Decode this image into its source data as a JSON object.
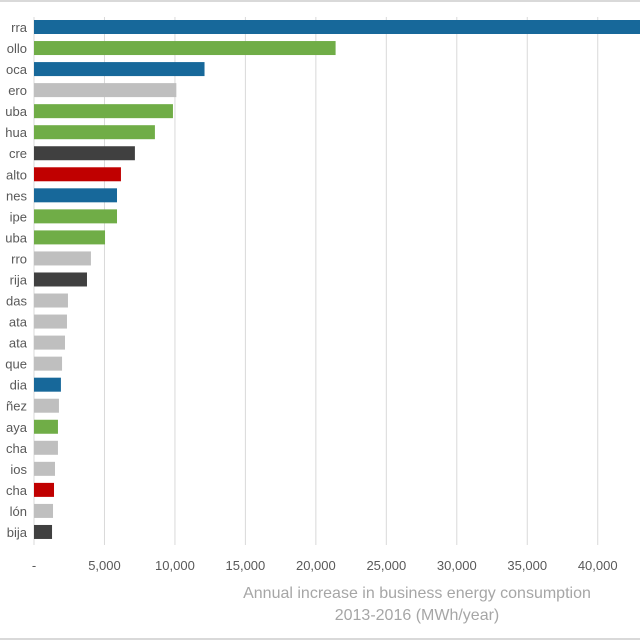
{
  "chart_data": {
    "type": "bar",
    "orientation": "horizontal",
    "categories": [
      "rra",
      "ollo",
      "oca",
      "ero",
      "uba",
      "hua",
      "cre",
      "alto",
      "nes",
      "ipe",
      "uba",
      "rro",
      "rija",
      "das",
      "ata",
      "ata",
      "que",
      "dia",
      "ñez",
      "aya",
      "cha",
      "ios",
      "cha",
      "lón",
      "bija"
    ],
    "values": [
      45000,
      21400,
      12100,
      10100,
      9860,
      8580,
      7160,
      6170,
      5890,
      5890,
      5040,
      4040,
      3760,
      2410,
      2340,
      2200,
      1990,
      1910,
      1770,
      1700,
      1700,
      1490,
      1420,
      1350,
      1280
    ],
    "bar_colors": [
      "#17689a",
      "#70ad47",
      "#17689a",
      "#bfbfbf",
      "#70ad47",
      "#70ad47",
      "#404040",
      "#c00000",
      "#17689a",
      "#70ad47",
      "#70ad47",
      "#bfbfbf",
      "#404040",
      "#bfbfbf",
      "#bfbfbf",
      "#bfbfbf",
      "#bfbfbf",
      "#17689a",
      "#bfbfbf",
      "#70ad47",
      "#bfbfbf",
      "#bfbfbf",
      "#c00000",
      "#bfbfbf",
      "#404040"
    ],
    "xlim": [
      0,
      43000
    ],
    "xticks": [
      0,
      5000,
      10000,
      15000,
      20000,
      25000,
      30000,
      35000,
      40000
    ],
    "xtick_labels": [
      "-",
      "5,000",
      "10,000",
      "15,000",
      "20,000",
      "25,000",
      "30,000",
      "35,000",
      "40,000"
    ],
    "xlabel_line1": "Annual increase in business energy consumption",
    "xlabel_line2": "2013-2016 (MWh/year)",
    "grid": "vertical",
    "title": ""
  }
}
